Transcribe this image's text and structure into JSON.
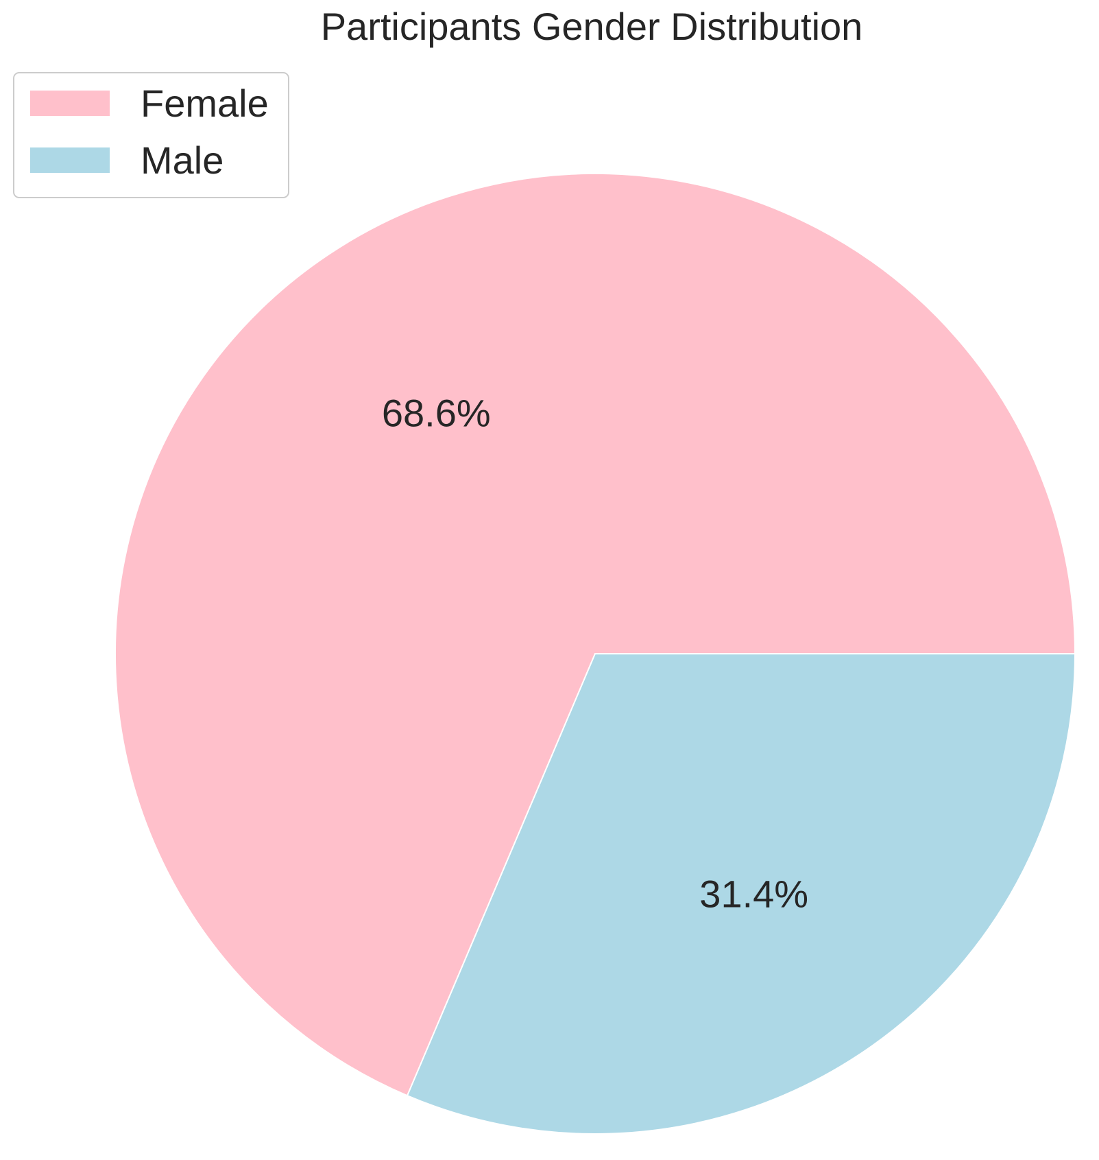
{
  "chart_data": {
    "type": "pie",
    "title": "Participants Gender Distribution",
    "categories": [
      "Female",
      "Male"
    ],
    "values": [
      68.6,
      31.4
    ],
    "value_labels": [
      "68.6%",
      "31.4%"
    ],
    "colors": [
      "#ffc0cb",
      "#add8e6"
    ],
    "legend": {
      "placement": "upper-left",
      "entries": [
        "Female",
        "Male"
      ]
    },
    "start_angle_deg": 0,
    "direction": "counterclockwise",
    "slice_edge_color": "#ffffff"
  }
}
